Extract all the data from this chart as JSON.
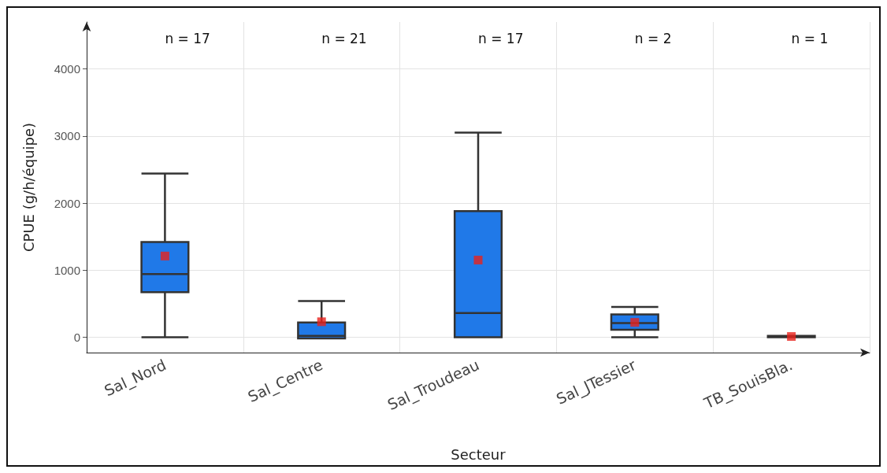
{
  "chart_data": {
    "type": "box",
    "xlabel": "Secteur",
    "ylabel": "CPUE (g/h/équipe)",
    "categories": [
      "Sal_Nord",
      "Sal_Centre",
      "Sal_Troudeau",
      "Sal_JTessier",
      "TB_SouisBla."
    ],
    "series": [
      {
        "color": "#2079e8",
        "boxes": [
          {
            "low": 0,
            "q1": 670,
            "median": 940,
            "q3": 1420,
            "high": 2440,
            "mean": 1210
          },
          {
            "low": -20,
            "q1": -20,
            "median": 20,
            "q3": 220,
            "high": 540,
            "mean": 230
          },
          {
            "low": 0,
            "q1": 0,
            "median": 360,
            "q3": 1880,
            "high": 3050,
            "mean": 1150
          },
          {
            "low": 0,
            "q1": 110,
            "median": 210,
            "q3": 340,
            "high": 450,
            "mean": 220
          },
          {
            "low": 0,
            "q1": 0,
            "median": 10,
            "q3": 20,
            "high": 20,
            "mean": 10
          }
        ]
      }
    ],
    "ylim": [
      -230,
      4700
    ],
    "yticks": [
      0,
      1000,
      2000,
      3000,
      4000
    ],
    "grid": true,
    "annotations": [
      "n = 17",
      "n = 21",
      "n = 17",
      "n = 2",
      "n = 1"
    ]
  }
}
